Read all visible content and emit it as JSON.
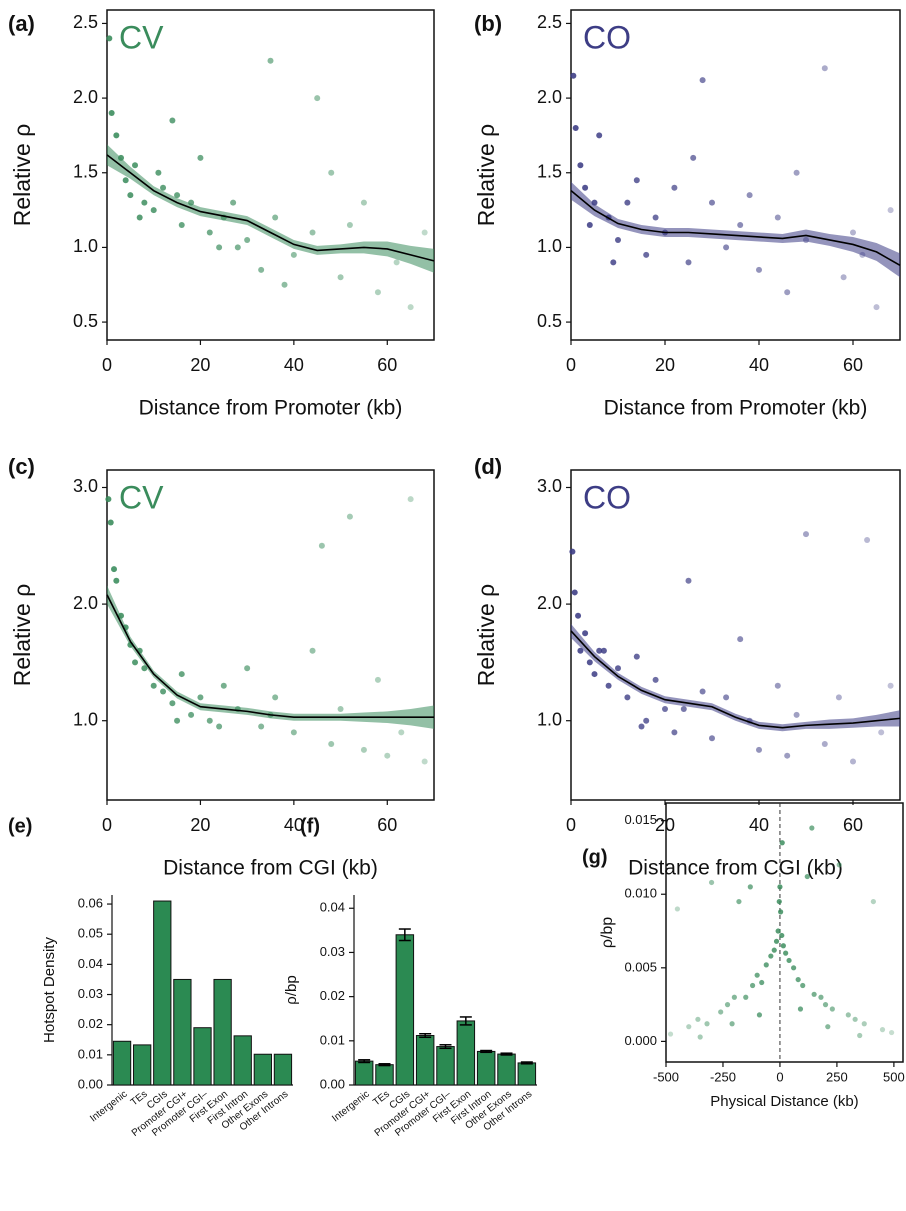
{
  "chart_data": [
    {
      "type": "scatter",
      "label": "(a)",
      "annotation": "CV",
      "color": "#3a8c5c",
      "xlabel": "Distance from Promoter (kb)",
      "ylabel": "Relative ρ",
      "xlim": [
        0,
        70
      ],
      "ylim": [
        0.38,
        2.59
      ],
      "xticks": [
        0,
        20,
        40,
        60
      ],
      "yticks": [
        0.5,
        {
          "value": 1.0,
          "label": "1.0"
        },
        1.5,
        {
          "value": 2.0,
          "label": "2.0"
        },
        2.5
      ],
      "points": {
        "x": [
          0.5,
          1,
          2,
          3,
          4,
          5,
          6,
          8,
          10,
          12,
          14,
          16,
          18,
          20,
          22,
          25,
          28,
          30,
          33,
          35,
          36,
          40,
          44,
          45,
          48,
          50,
          55,
          58,
          62,
          65,
          68,
          7,
          11,
          15,
          24,
          27,
          38,
          52
        ],
        "y": [
          2.4,
          1.9,
          1.75,
          1.6,
          1.45,
          1.35,
          1.55,
          1.3,
          1.25,
          1.4,
          1.85,
          1.15,
          1.3,
          1.6,
          1.1,
          1.2,
          1.0,
          1.05,
          0.85,
          2.25,
          1.2,
          0.95,
          1.1,
          2.0,
          1.5,
          0.8,
          1.3,
          0.7,
          0.9,
          0.6,
          1.1,
          1.2,
          1.5,
          1.35,
          1.0,
          1.3,
          0.75,
          1.15
        ]
      },
      "trend": {
        "x": [
          0,
          5,
          10,
          15,
          20,
          25,
          30,
          35,
          40,
          45,
          50,
          55,
          60,
          65,
          70
        ],
        "y": [
          1.62,
          1.5,
          1.38,
          1.3,
          1.24,
          1.21,
          1.18,
          1.1,
          1.02,
          0.98,
          0.99,
          1.0,
          0.99,
          0.95,
          0.91
        ],
        "lower": [
          1.55,
          1.46,
          1.35,
          1.27,
          1.21,
          1.18,
          1.15,
          1.07,
          0.99,
          0.95,
          0.96,
          0.96,
          0.94,
          0.89,
          0.83
        ],
        "upper": [
          1.69,
          1.54,
          1.41,
          1.33,
          1.27,
          1.24,
          1.21,
          1.13,
          1.05,
          1.01,
          1.02,
          1.04,
          1.04,
          1.01,
          0.99
        ]
      }
    },
    {
      "type": "scatter",
      "label": "(b)",
      "annotation": "CO",
      "color": "#3d3d85",
      "xlabel": "Distance from Promoter (kb)",
      "ylabel": "Relative ρ",
      "xlim": [
        0,
        70
      ],
      "ylim": [
        0.38,
        2.59
      ],
      "xticks": [
        0,
        20,
        40,
        60
      ],
      "yticks": [
        0.5,
        {
          "value": 1.0,
          "label": "1.0"
        },
        1.5,
        {
          "value": 2.0,
          "label": "2.0"
        },
        2.5
      ],
      "points": {
        "x": [
          0.5,
          1,
          2,
          3,
          5,
          6,
          8,
          10,
          12,
          14,
          16,
          18,
          20,
          22,
          25,
          28,
          30,
          33,
          36,
          40,
          44,
          48,
          50,
          54,
          58,
          62,
          65,
          68,
          4,
          9,
          26,
          38,
          46,
          60
        ],
        "y": [
          2.15,
          1.8,
          1.55,
          1.4,
          1.3,
          1.75,
          1.2,
          1.05,
          1.3,
          1.45,
          0.95,
          1.2,
          1.1,
          1.4,
          0.9,
          2.12,
          1.3,
          1.0,
          1.15,
          0.85,
          1.2,
          1.5,
          1.05,
          2.2,
          0.8,
          0.95,
          0.6,
          1.25,
          1.15,
          0.9,
          1.6,
          1.35,
          0.7,
          1.1
        ]
      },
      "trend": {
        "x": [
          0,
          5,
          10,
          15,
          20,
          25,
          30,
          35,
          40,
          45,
          50,
          55,
          60,
          65,
          70
        ],
        "y": [
          1.38,
          1.25,
          1.16,
          1.12,
          1.1,
          1.1,
          1.09,
          1.08,
          1.07,
          1.06,
          1.08,
          1.05,
          1.02,
          0.97,
          0.88
        ],
        "lower": [
          1.32,
          1.21,
          1.13,
          1.09,
          1.07,
          1.07,
          1.06,
          1.05,
          1.04,
          1.03,
          1.04,
          1.01,
          0.97,
          0.91,
          0.8
        ],
        "upper": [
          1.44,
          1.29,
          1.19,
          1.15,
          1.13,
          1.13,
          1.12,
          1.11,
          1.1,
          1.09,
          1.12,
          1.09,
          1.07,
          1.03,
          0.96
        ]
      }
    },
    {
      "type": "scatter",
      "label": "(c)",
      "annotation": "CV",
      "color": "#3a8c5c",
      "xlabel": "Distance from CGI (kb)",
      "ylabel": "Relative ρ",
      "xlim": [
        0,
        70
      ],
      "ylim": [
        0.32,
        3.15
      ],
      "xticks": [
        0,
        20,
        40,
        60
      ],
      "yticks": [
        {
          "value": 1.0,
          "label": "1.0"
        },
        {
          "value": 2.0,
          "label": "2.0"
        },
        {
          "value": 3.0,
          "label": "3.0"
        }
      ],
      "points": {
        "x": [
          0.3,
          0.8,
          1.5,
          2,
          3,
          4,
          5,
          6,
          8,
          10,
          12,
          14,
          16,
          18,
          20,
          22,
          25,
          28,
          30,
          33,
          36,
          40,
          44,
          46,
          48,
          50,
          52,
          55,
          58,
          60,
          63,
          65,
          68,
          7,
          15,
          24,
          35
        ],
        "y": [
          2.9,
          2.7,
          2.3,
          2.2,
          1.9,
          1.8,
          1.65,
          1.5,
          1.45,
          1.3,
          1.25,
          1.15,
          1.4,
          1.05,
          1.2,
          1.0,
          1.3,
          1.1,
          1.45,
          0.95,
          1.2,
          0.9,
          1.6,
          2.5,
          0.8,
          1.1,
          2.75,
          0.75,
          1.35,
          0.7,
          0.9,
          2.9,
          0.65,
          1.6,
          1.0,
          0.95,
          1.05
        ]
      },
      "trend": {
        "x": [
          0,
          5,
          10,
          15,
          20,
          25,
          30,
          35,
          40,
          45,
          50,
          55,
          60,
          65,
          70
        ],
        "y": [
          2.08,
          1.68,
          1.4,
          1.22,
          1.12,
          1.1,
          1.08,
          1.05,
          1.03,
          1.03,
          1.03,
          1.03,
          1.03,
          1.03,
          1.03
        ],
        "lower": [
          2.0,
          1.64,
          1.37,
          1.19,
          1.09,
          1.07,
          1.05,
          1.02,
          1.0,
          1.0,
          1.0,
          0.99,
          0.98,
          0.96,
          0.93
        ],
        "upper": [
          2.16,
          1.72,
          1.43,
          1.25,
          1.15,
          1.13,
          1.11,
          1.08,
          1.06,
          1.06,
          1.06,
          1.07,
          1.08,
          1.1,
          1.13
        ]
      }
    },
    {
      "type": "scatter",
      "label": "(d)",
      "annotation": "CO",
      "color": "#3d3d85",
      "xlabel": "Distance from CGI (kb)",
      "ylabel": "Relative ρ",
      "xlim": [
        0,
        70
      ],
      "ylim": [
        0.32,
        3.15
      ],
      "xticks": [
        0,
        20,
        40,
        60
      ],
      "yticks": [
        {
          "value": 1.0,
          "label": "1.0"
        },
        {
          "value": 2.0,
          "label": "2.0"
        },
        {
          "value": 3.0,
          "label": "3.0"
        }
      ],
      "points": {
        "x": [
          0.3,
          0.8,
          1.5,
          2,
          3,
          4,
          5,
          6,
          8,
          10,
          12,
          14,
          16,
          18,
          20,
          22,
          25,
          28,
          30,
          33,
          36,
          40,
          44,
          46,
          48,
          50,
          54,
          57,
          60,
          63,
          66,
          68,
          7,
          15,
          24,
          38
        ],
        "y": [
          2.45,
          2.1,
          1.9,
          1.6,
          1.75,
          1.5,
          1.4,
          1.6,
          1.3,
          1.45,
          1.2,
          1.55,
          1.0,
          1.35,
          1.1,
          0.9,
          2.2,
          1.25,
          0.85,
          1.2,
          1.7,
          0.75,
          1.3,
          0.7,
          1.05,
          2.6,
          0.8,
          1.2,
          0.65,
          2.55,
          0.9,
          1.3,
          1.6,
          0.95,
          1.1,
          1.0
        ]
      },
      "trend": {
        "x": [
          0,
          5,
          10,
          15,
          20,
          25,
          30,
          35,
          40,
          45,
          50,
          55,
          60,
          65,
          70
        ],
        "y": [
          1.77,
          1.55,
          1.38,
          1.26,
          1.18,
          1.15,
          1.12,
          1.03,
          0.96,
          0.94,
          0.96,
          0.97,
          0.98,
          1.0,
          1.02
        ],
        "lower": [
          1.71,
          1.51,
          1.35,
          1.23,
          1.15,
          1.12,
          1.09,
          1.0,
          0.93,
          0.91,
          0.93,
          0.93,
          0.94,
          0.95,
          0.95
        ],
        "upper": [
          1.83,
          1.59,
          1.41,
          1.29,
          1.21,
          1.18,
          1.15,
          1.06,
          0.99,
          0.97,
          0.99,
          1.01,
          1.02,
          1.05,
          1.09
        ]
      }
    },
    {
      "type": "bar",
      "label": "(e)",
      "color": "#2b8a52",
      "ylabel": "Hotspot Density",
      "categories": [
        "Intergenic",
        "TEs",
        "CGIs",
        "Promoter CGI+",
        "Promoter CGI–",
        "First Exon",
        "First Intron",
        "Other Exons",
        "Other Introns"
      ],
      "values": [
        0.0145,
        0.0133,
        0.061,
        0.035,
        0.019,
        0.035,
        0.0163,
        0.0102,
        0.0102
      ],
      "ylim": [
        0,
        0.063
      ],
      "yticks": [
        {
          "value": 0,
          "label": "0.00"
        },
        0.01,
        0.02,
        0.03,
        0.04,
        0.05,
        0.06
      ]
    },
    {
      "type": "bar",
      "label": "(f)",
      "color": "#2b8a52",
      "ylabel": "ρ/bp",
      "categories": [
        "Intergenic",
        "TEs",
        "CGIs",
        "Promoter CGI+",
        "Promoter CGI–",
        "First Exon",
        "First Intron",
        "Other Exons",
        "Other Introns"
      ],
      "values": [
        0.0054,
        0.0046,
        0.034,
        0.0112,
        0.0087,
        0.0145,
        0.0076,
        0.007,
        0.005
      ],
      "errors": [
        0.0003,
        0.0002,
        0.0013,
        0.0004,
        0.0004,
        0.0009,
        0.0002,
        0.0002,
        0.0002
      ],
      "ylim": [
        0,
        0.043
      ],
      "yticks": [
        {
          "value": 0,
          "label": "0.00"
        },
        0.01,
        0.02,
        0.03,
        0.04
      ]
    },
    {
      "type": "scatter",
      "label": "(g)",
      "color": "#3a8c5c",
      "xlabel": "Physical Distance (kb)",
      "ylabel": "ρ/bp",
      "vline": 0,
      "xlim": [
        -500,
        540
      ],
      "ylim": [
        -0.0014,
        0.0162
      ],
      "xticks": [
        -500,
        -250,
        0,
        250,
        500
      ],
      "yticks": [
        {
          "value": 0,
          "label": "0.000"
        },
        0.005,
        {
          "value": 0.01,
          "label": "0.010"
        },
        0.015
      ],
      "points": {
        "x": [
          -480,
          -450,
          -400,
          -360,
          -320,
          -300,
          -260,
          -230,
          -200,
          -180,
          -150,
          -120,
          -100,
          -80,
          -60,
          -40,
          -25,
          -15,
          -8,
          -3,
          0,
          3,
          8,
          15,
          25,
          40,
          60,
          80,
          100,
          120,
          150,
          180,
          200,
          230,
          260,
          300,
          330,
          370,
          410,
          450,
          490,
          -350,
          -210,
          -90,
          10,
          90,
          210,
          350,
          -130,
          140
        ],
        "y": [
          0.0005,
          0.009,
          0.001,
          0.0015,
          0.0012,
          0.0108,
          0.002,
          0.0025,
          0.003,
          0.0095,
          0.003,
          0.0038,
          0.0045,
          0.004,
          0.0052,
          0.0058,
          0.0062,
          0.0068,
          0.0075,
          0.0095,
          0.0105,
          0.0088,
          0.0072,
          0.0065,
          0.006,
          0.0055,
          0.005,
          0.0042,
          0.0038,
          0.0112,
          0.0032,
          0.003,
          0.0025,
          0.0022,
          0.012,
          0.0018,
          0.0015,
          0.0012,
          0.0095,
          0.0008,
          0.0006,
          0.0003,
          0.0012,
          0.0018,
          0.0135,
          0.0022,
          0.001,
          0.0004,
          0.0105,
          0.0145
        ]
      }
    }
  ]
}
